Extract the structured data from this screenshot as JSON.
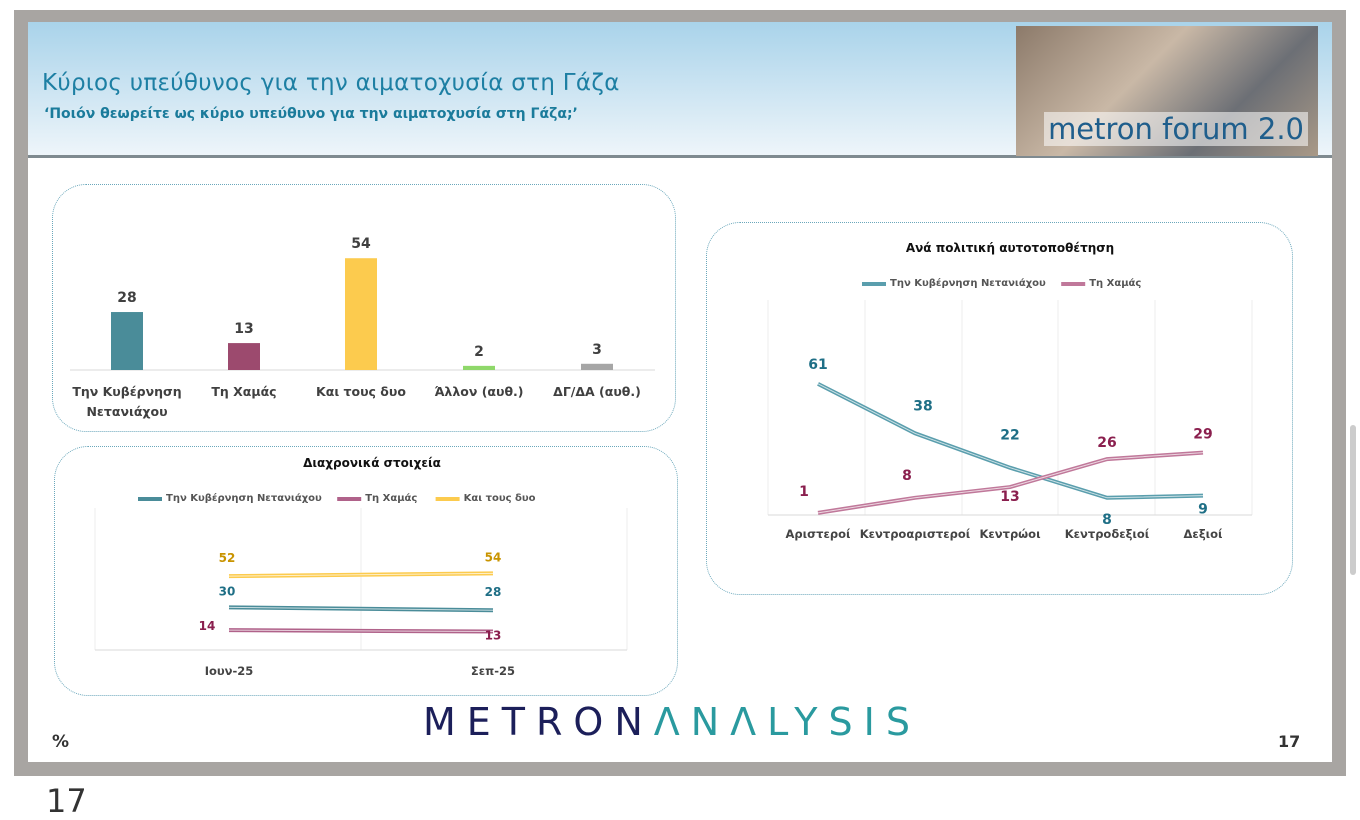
{
  "header": {
    "title": "Κύριος υπεύθυνος για την αιματοχυσία στη Γάζα",
    "subtitle": "‘Ποιόν θεωρείτε ως κύριο υπεύθυνο για την αιματοχυσία στη Γάζα;’",
    "photo_logo": "metron forum 2.0"
  },
  "footer": {
    "brand_a": "METRON",
    "brand_b": "ΛNΛLYSIS",
    "unit": "%",
    "page": "17"
  },
  "below_page": "17",
  "chart_data": [
    {
      "type": "bar",
      "categories": [
        "Την Κυβέρνηση Νετανιάχου",
        "Τη Χαμάς",
        "Και τους δυο",
        "Άλλον (αυθ.)",
        "ΔΓ/ΔΑ (αυθ.)"
      ],
      "values": [
        28,
        13,
        54,
        2,
        3
      ],
      "colors": [
        "#4a8c99",
        "#9c4a6e",
        "#fccb4e",
        "#8fd86a",
        "#a6a6a6"
      ]
    },
    {
      "type": "line",
      "title": "Διαχρονικά στοιχεία",
      "categories": [
        "Ιουν-25",
        "Σεπ-25"
      ],
      "series": [
        {
          "name": "Την Κυβέρνηση Νετανιάχου",
          "values": [
            30,
            28
          ],
          "color": "#4a8c99",
          "label_color": "#1f6f86"
        },
        {
          "name": "Τη Χαμάς",
          "values": [
            14,
            13
          ],
          "color": "#b0628a",
          "label_color": "#8a1f4e"
        },
        {
          "name": "Και τους δυο",
          "values": [
            52,
            54
          ],
          "color": "#fccb4e",
          "label_color": "#c99400"
        }
      ]
    },
    {
      "type": "line",
      "title": "Ανά πολιτική αυτοτοποθέτηση",
      "categories": [
        "Αριστεροί",
        "Κεντροαριστεροί",
        "Κεντρώοι",
        "Κεντροδεξιοί",
        "Δεξιοί"
      ],
      "series": [
        {
          "name": "Την Κυβέρνηση Νετανιάχου",
          "values": [
            61,
            38,
            22,
            8,
            9
          ],
          "color": "#5a9ead",
          "label_color": "#1f6f86"
        },
        {
          "name": "Τη Χαμάς",
          "values": [
            1,
            8,
            13,
            26,
            29
          ],
          "color": "#c0789a",
          "label_color": "#8a1f4e"
        }
      ]
    }
  ]
}
